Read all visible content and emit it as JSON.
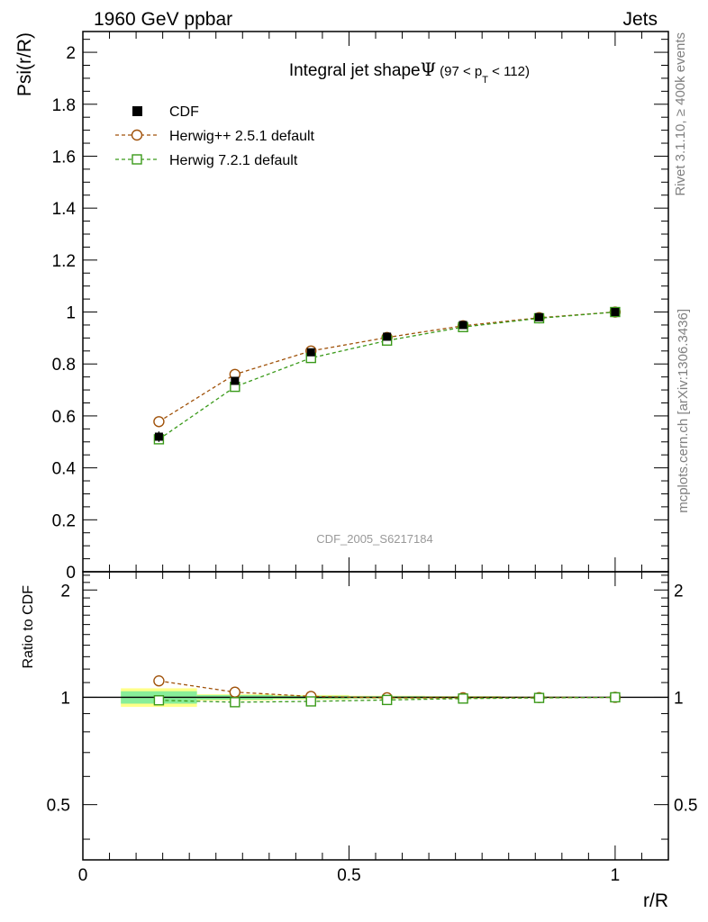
{
  "header": {
    "left": "1960 GeV ppbar",
    "right": "Jets"
  },
  "side_labels": {
    "rivet": "Rivet 3.1.10, ≥ 400k events",
    "mcplots": "mcplots.cern.ch [arXiv:1306.3436]"
  },
  "watermark": "CDF_2005_S6217184",
  "title": {
    "main": "Integral jet shape",
    "psi": "Ψ",
    "range_open": "(97 < p",
    "sub": "T",
    "range_close": " < 112)"
  },
  "legend": [
    {
      "label": "CDF",
      "marker": "filled-square"
    },
    {
      "label": "Herwig++ 2.5.1 default",
      "marker": "open-circle"
    },
    {
      "label": "Herwig 7.2.1 default",
      "marker": "open-square"
    }
  ],
  "colors": {
    "data": "#000000",
    "herwigpp": "#a0520a",
    "herwig7": "#3a9a1a",
    "band_outer": "#ffff88",
    "band_inner": "#88ee99"
  },
  "chart_data": {
    "type": "line",
    "main": {
      "ylabel": "Psi(r/R)",
      "ylim": [
        0,
        2.08
      ],
      "yticks": [
        0,
        0.2,
        0.4,
        0.6,
        0.8,
        1,
        1.2,
        1.4,
        1.6,
        1.8,
        2
      ],
      "yticklabels": [
        "0",
        "0.2",
        "0.4",
        "0.6",
        "0.8",
        "1",
        "1.2",
        "1.4",
        "1.6",
        "1.8",
        "2"
      ],
      "x": [
        0.142857,
        0.285714,
        0.428571,
        0.571429,
        0.714286,
        0.857143,
        1.0
      ],
      "series": [
        {
          "name": "CDF",
          "values": [
            0.52,
            0.735,
            0.845,
            0.905,
            0.95,
            0.98,
            1.0
          ],
          "errors": [
            0.02,
            0.015,
            0.012,
            0.01,
            0.008,
            0.005,
            0.0
          ]
        },
        {
          "name": "Herwig++ 2.5.1 default",
          "values": [
            0.578,
            0.76,
            0.85,
            0.902,
            0.947,
            0.978,
            1.0
          ]
        },
        {
          "name": "Herwig 7.2.1 default",
          "values": [
            0.51,
            0.712,
            0.823,
            0.89,
            0.942,
            0.976,
            1.0
          ]
        }
      ]
    },
    "ratio": {
      "ylabel": "Ratio to CDF",
      "ylim": [
        0.35,
        2.25
      ],
      "yticks": [
        0.5,
        1,
        2
      ],
      "yticklabels": [
        "0.5",
        "1",
        "2"
      ],
      "x": [
        0.142857,
        0.285714,
        0.428571,
        0.571429,
        0.714286,
        0.857143,
        1.0
      ],
      "series": [
        {
          "name": "Herwig++ 2.5.1 default",
          "values": [
            1.112,
            1.034,
            1.006,
            0.997,
            0.997,
            0.998,
            1.0
          ]
        },
        {
          "name": "Herwig 7.2.1 default",
          "values": [
            0.981,
            0.969,
            0.974,
            0.983,
            0.992,
            0.996,
            1.0
          ]
        }
      ],
      "bands": [
        {
          "x_range": [
            0.0714,
            0.2143
          ],
          "outer": [
            0.94,
            1.06
          ],
          "inner": [
            0.96,
            1.04
          ]
        },
        {
          "x_range": [
            0.2143,
            0.3571
          ],
          "outer": [
            0.98,
            1.02
          ],
          "inner": [
            0.985,
            1.015
          ]
        },
        {
          "x_range": [
            0.3571,
            0.5
          ],
          "outer": [
            0.985,
            1.015
          ],
          "inner": [
            0.99,
            1.01
          ]
        },
        {
          "x_range": [
            0.5,
            0.6429
          ],
          "outer": [
            0.99,
            1.01
          ],
          "inner": [
            0.993,
            1.007
          ]
        },
        {
          "x_range": [
            0.6429,
            0.7857
          ],
          "outer": [
            0.992,
            1.008
          ],
          "inner": [
            0.995,
            1.005
          ]
        },
        {
          "x_range": [
            0.7857,
            0.9286
          ],
          "outer": [
            0.995,
            1.005
          ],
          "inner": [
            0.997,
            1.003
          ]
        }
      ]
    },
    "xlabel": "r/R",
    "xlim": [
      0,
      1.1
    ],
    "xticks": [
      0,
      0.5,
      1
    ],
    "xticklabels": [
      "0",
      "0.5",
      "1"
    ]
  }
}
